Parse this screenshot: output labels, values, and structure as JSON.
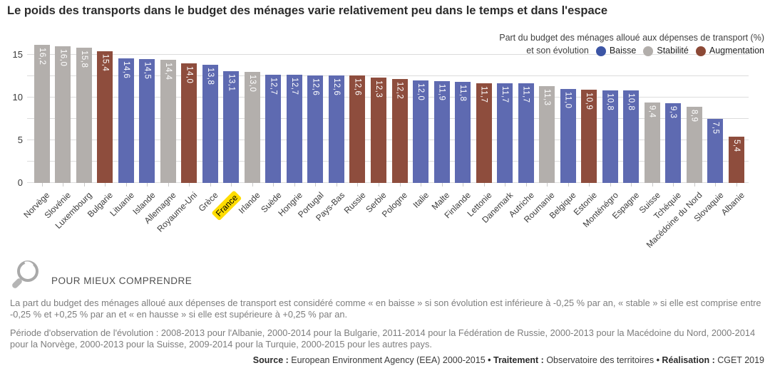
{
  "title": "Le poids des transports dans le budget des ménages varie relativement peu dans le temps et dans l'espace",
  "legend": {
    "caption_line1": "Part du budget des ménages alloué aux dépenses de transport (%)",
    "caption_line2": "et son évolution",
    "items": [
      {
        "label": "Baisse",
        "color": "#3c55a5"
      },
      {
        "label": "Stabilité",
        "color": "#b2aeab"
      },
      {
        "label": "Augmentation",
        "color": "#8c4936"
      }
    ]
  },
  "chart_data": {
    "type": "bar",
    "title": "Part du budget des ménages alloué aux dépenses de transport (%) et son évolution",
    "xlabel": "",
    "ylabel": "",
    "ylim": [
      0,
      16.5
    ],
    "yticks": [
      0,
      5,
      10,
      15
    ],
    "gridlines": [
      0,
      2.5,
      5,
      7.5,
      10,
      12.5,
      15
    ],
    "legend_position": "top-right",
    "categories": [
      "Norvège",
      "Slovénie",
      "Luxembourg",
      "Bulgarie",
      "Lituanie",
      "Islande",
      "Allemagne",
      "Royaume-Uni",
      "Grèce",
      "France",
      "Irlande",
      "Suède",
      "Hongrie",
      "Portugal",
      "Pays-Bas",
      "Russie",
      "Serbie",
      "Pologne",
      "Italie",
      "Malte",
      "Finlande",
      "Lettonie",
      "Danemark",
      "Autriche",
      "Roumanie",
      "Belgique",
      "Estonie",
      "Monténégro",
      "Espagne",
      "Suisse",
      "Tchéquie",
      "Macédoine du Nord",
      "Slovaquie",
      "Albanie"
    ],
    "values": [
      16.2,
      16.0,
      15.8,
      15.4,
      14.6,
      14.5,
      14.4,
      14.0,
      13.8,
      13.1,
      13.0,
      12.7,
      12.7,
      12.6,
      12.6,
      12.6,
      12.3,
      12.2,
      12.0,
      11.9,
      11.8,
      11.7,
      11.7,
      11.7,
      11.3,
      11.0,
      10.9,
      10.8,
      10.8,
      9.4,
      9.3,
      8.9,
      7.5,
      5.4
    ],
    "evolution": [
      "Stabilité",
      "Stabilité",
      "Stabilité",
      "Augmentation",
      "Baisse",
      "Baisse",
      "Stabilité",
      "Augmentation",
      "Baisse",
      "Baisse",
      "Stabilité",
      "Baisse",
      "Baisse",
      "Baisse",
      "Baisse",
      "Augmentation",
      "Augmentation",
      "Augmentation",
      "Baisse",
      "Baisse",
      "Baisse",
      "Augmentation",
      "Baisse",
      "Baisse",
      "Stabilité",
      "Baisse",
      "Augmentation",
      "Baisse",
      "Baisse",
      "Stabilité",
      "Baisse",
      "Stabilité",
      "Baisse",
      "Augmentation"
    ],
    "bar_colors": {
      "Baisse": "#5e6ab1",
      "Stabilité": "#b3afac",
      "Augmentation": "#8e4d3d"
    },
    "highlight_category": "France",
    "highlight_color": "#ffdd00"
  },
  "notes": {
    "heading": "POUR MIEUX COMPRENDRE",
    "note1": "La part du budget des ménages alloué aux dépenses de transport est considéré comme « en baisse » si son évolution est inférieure à -0,25 % par an, « stable » si elle est comprise entre -0,25 % et +0,25 % par an et « en hausse » si elle est supérieure à +0,25 % par an.",
    "note2": "Période d'observation de l'évolution : 2008-2013 pour l'Albanie, 2000-2014 pour la Bulgarie, 2011-2014 pour la Fédération de Russie, 2000-2013 pour la Macédoine du Nord, 2000-2014 pour la Norvège, 2000-2013 pour la Suisse, 2009-2014 pour la Turquie, 2000-2015 pour les autres pays."
  },
  "source": {
    "separator": " • ",
    "parts": [
      {
        "label": "Source :",
        "value": "European Environment Agency (EEA) 2000-2015"
      },
      {
        "label": "Traitement :",
        "value": "Observatoire des territoires"
      },
      {
        "label": "Réalisation :",
        "value": "CGET 2019"
      }
    ]
  }
}
